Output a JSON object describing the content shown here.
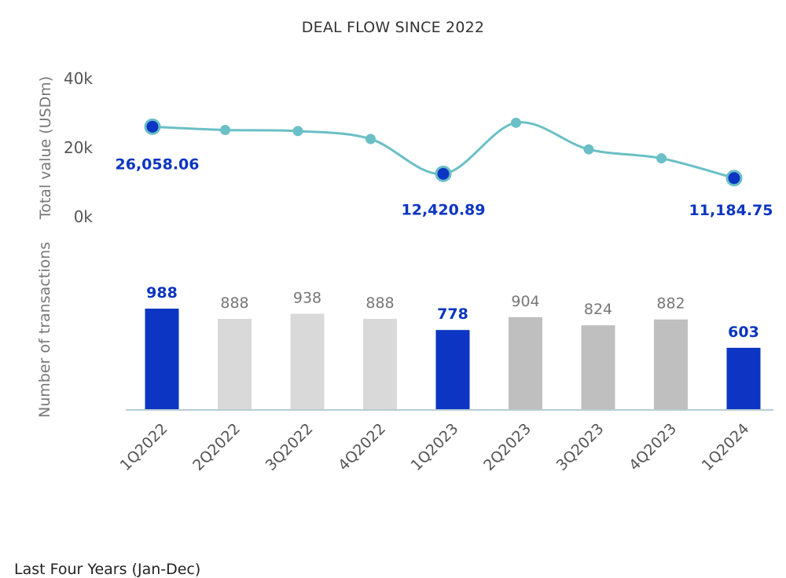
{
  "title": "DEAL FLOW SINCE 2022",
  "footer_text": "Last Four Years (Jan-Dec)",
  "colors": {
    "line": "#6bbfc6",
    "highlight": "#0b35c2",
    "bar_2022": "#d9d9d9",
    "bar_2023": "#bfbfbf",
    "axis": "#b7cbd6"
  },
  "chart_data": [
    {
      "type": "line",
      "categories": [
        "1Q2022",
        "2Q2022",
        "3Q2022",
        "4Q2022",
        "1Q2023",
        "2Q2023",
        "3Q2023",
        "4Q2023",
        "1Q2024"
      ],
      "series": [
        {
          "values": [
            26058.06,
            25100,
            24800,
            22500,
            12420.89,
            27200,
            19500,
            16900,
            11184.75
          ]
        }
      ],
      "ylabel": "Total value (USDm)",
      "ylim": [
        0,
        40000
      ],
      "yticks": [
        0,
        20000,
        40000
      ],
      "ytick_labels": [
        "0k",
        "20k",
        "40k"
      ],
      "highlighted_indices": [
        0,
        4,
        8
      ],
      "data_labels": [
        "26,058.06",
        "12,420.89",
        "11,184.75"
      ]
    },
    {
      "type": "bar",
      "categories": [
        "1Q2022",
        "2Q2022",
        "3Q2022",
        "4Q2022",
        "1Q2023",
        "2Q2023",
        "3Q2023",
        "4Q2023",
        "1Q2024"
      ],
      "values": [
        988,
        888,
        938,
        888,
        778,
        904,
        824,
        882,
        603
      ],
      "value_labels": [
        "988",
        "888",
        "938",
        "888",
        "778",
        "904",
        "824",
        "882",
        "603"
      ],
      "ylabel": "Number of transactions",
      "highlighted_indices": [
        0,
        4,
        8
      ]
    }
  ]
}
